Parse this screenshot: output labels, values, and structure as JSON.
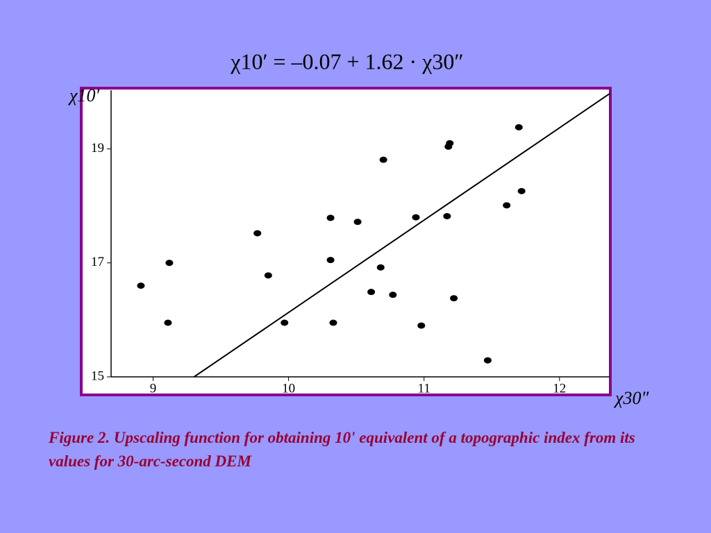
{
  "chart_data": {
    "type": "scatter",
    "title": "χ10′ = –0.07 + 1.62 · χ30″",
    "x_label": "χ30″",
    "y_label": "χ10′",
    "x": [
      8.91,
      9.12,
      9.11,
      9.77,
      9.85,
      9.97,
      10.31,
      10.31,
      10.33,
      10.51,
      10.7,
      10.68,
      10.61,
      10.77,
      10.94,
      10.98,
      11.17,
      11.19,
      11.18,
      11.22,
      11.47,
      11.61,
      11.7,
      11.72
    ],
    "values": [
      16.6,
      17.0,
      15.95,
      17.52,
      16.78,
      15.95,
      17.79,
      17.05,
      15.95,
      17.72,
      18.81,
      16.92,
      16.49,
      16.44,
      17.8,
      15.9,
      17.82,
      19.1,
      19.04,
      16.38,
      15.29,
      18.01,
      19.38,
      18.26
    ],
    "color": "#000000",
    "fit": {
      "intercept": -0.07,
      "slope": 1.62,
      "color": "#000000"
    },
    "xlim": [
      8.69,
      12.37
    ],
    "ylim": [
      15,
      20.03
    ],
    "xticks": [
      9,
      10,
      11,
      12
    ],
    "yticks": [
      15,
      17,
      19
    ]
  },
  "caption": "Figure 2. Upscaling function for obtaining 10' equivalent of a topographic index from its values for 30-arc-second DEM"
}
